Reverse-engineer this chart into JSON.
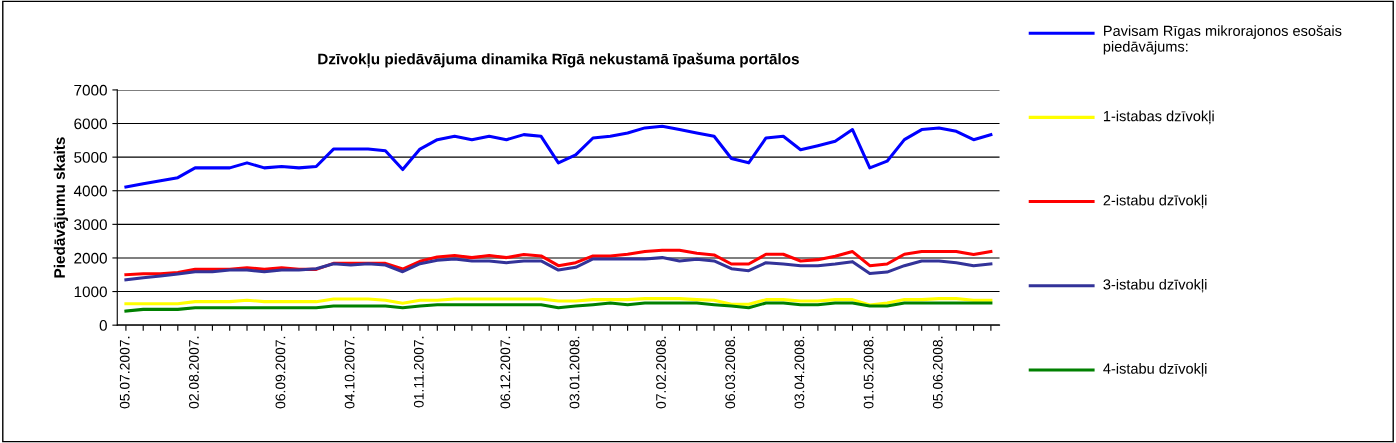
{
  "chart_data": {
    "type": "line",
    "title": "Dzīvokļu piedāvājuma dinamika Rīgā nekustamā īpašuma portālos",
    "ylabel": "Piedāvājumu skaits",
    "categories": [
      "05.07.2007.",
      null,
      null,
      null,
      "02.08.2007.",
      null,
      null,
      null,
      null,
      "06.09.2007.",
      null,
      null,
      null,
      "04.10.2007.",
      null,
      null,
      null,
      "01.11.2007.",
      null,
      null,
      null,
      null,
      "06.12.2007.",
      null,
      null,
      null,
      "03.01.2008.",
      null,
      null,
      null,
      null,
      "07.02.2008.",
      null,
      null,
      null,
      "06.03.2008.",
      null,
      null,
      null,
      "03.04.2008.",
      null,
      null,
      null,
      "01.05.2008.",
      null,
      null,
      null,
      "05.06.2008.",
      null,
      null,
      null
    ],
    "series": [
      {
        "name": "Pavisam Rīgas mikrorajonos esošais piedāvājums:",
        "color": "#0000ff",
        "values": [
          4110,
          4210,
          4300,
          4390,
          4680,
          4680,
          4680,
          4830,
          4680,
          4720,
          4680,
          4720,
          5240,
          5240,
          5240,
          5190,
          4630,
          5240,
          5520,
          5620,
          5520,
          5620,
          5520,
          5670,
          5620,
          4830,
          5070,
          5570,
          5620,
          5720,
          5870,
          5920,
          5820,
          5720,
          5620,
          4960,
          4830,
          5570,
          5620,
          5220,
          5340,
          5470,
          5820,
          4680,
          4880,
          5520,
          5820,
          5870,
          5770,
          5520,
          5670
        ]
      },
      {
        "name": "1-istabas dzīvokļi",
        "color": "#ffff00",
        "values": [
          640,
          640,
          640,
          640,
          700,
          700,
          700,
          740,
          700,
          700,
          700,
          700,
          780,
          780,
          780,
          740,
          650,
          740,
          740,
          780,
          780,
          780,
          780,
          780,
          780,
          720,
          720,
          760,
          760,
          760,
          790,
          790,
          790,
          760,
          740,
          620,
          620,
          760,
          760,
          720,
          720,
          760,
          760,
          600,
          660,
          760,
          760,
          790,
          790,
          740,
          740
        ]
      },
      {
        "name": "2-istabu dzīvokļi",
        "color": "#ff0000",
        "values": [
          1500,
          1530,
          1530,
          1570,
          1660,
          1660,
          1660,
          1710,
          1660,
          1710,
          1660,
          1660,
          1840,
          1840,
          1840,
          1840,
          1670,
          1900,
          2030,
          2070,
          2010,
          2070,
          2010,
          2100,
          2060,
          1770,
          1860,
          2060,
          2060,
          2110,
          2190,
          2230,
          2230,
          2140,
          2090,
          1820,
          1820,
          2110,
          2110,
          1910,
          1950,
          2050,
          2190,
          1770,
          1820,
          2110,
          2190,
          2190,
          2190,
          2100,
          2190
        ]
      },
      {
        "name": "3-istabu dzīvokļi",
        "color": "#333399",
        "values": [
          1350,
          1410,
          1460,
          1520,
          1590,
          1590,
          1640,
          1640,
          1590,
          1640,
          1640,
          1680,
          1830,
          1790,
          1830,
          1790,
          1590,
          1830,
          1930,
          1970,
          1910,
          1910,
          1860,
          1910,
          1910,
          1640,
          1720,
          1970,
          1970,
          1970,
          1970,
          2010,
          1910,
          1960,
          1910,
          1680,
          1620,
          1860,
          1820,
          1770,
          1770,
          1820,
          1890,
          1540,
          1580,
          1770,
          1910,
          1910,
          1860,
          1770,
          1820
        ]
      },
      {
        "name": "4-istabu dzīvokļi",
        "color": "#008000",
        "values": [
          420,
          470,
          470,
          470,
          520,
          520,
          520,
          520,
          520,
          520,
          520,
          520,
          570,
          570,
          570,
          570,
          520,
          570,
          610,
          610,
          610,
          610,
          610,
          610,
          610,
          520,
          570,
          610,
          660,
          610,
          660,
          660,
          660,
          660,
          610,
          570,
          520,
          660,
          660,
          610,
          610,
          660,
          660,
          570,
          570,
          660,
          660,
          660,
          660,
          660,
          660
        ]
      }
    ],
    "ylim": [
      0,
      7000
    ],
    "yticks": [
      0,
      1000,
      2000,
      3000,
      4000,
      5000,
      6000,
      7000
    ],
    "grid": "y",
    "legend": "right",
    "marker": "none",
    "line_style": "solid"
  }
}
